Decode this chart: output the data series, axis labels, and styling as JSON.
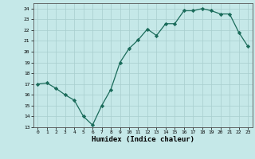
{
  "x": [
    0,
    1,
    2,
    3,
    4,
    5,
    6,
    7,
    8,
    9,
    10,
    11,
    12,
    13,
    14,
    15,
    16,
    17,
    18,
    19,
    20,
    21,
    22,
    23
  ],
  "y": [
    17.0,
    17.1,
    16.6,
    16.0,
    15.5,
    14.0,
    13.2,
    15.0,
    16.5,
    19.0,
    20.3,
    21.1,
    22.1,
    21.5,
    22.6,
    22.6,
    23.8,
    23.8,
    24.0,
    23.8,
    23.5,
    23.5,
    21.8,
    20.5
  ],
  "xlim": [
    -0.5,
    23.5
  ],
  "ylim": [
    13,
    24.5
  ],
  "yticks": [
    13,
    14,
    15,
    16,
    17,
    18,
    19,
    20,
    21,
    22,
    23,
    24
  ],
  "xticks": [
    0,
    1,
    2,
    3,
    4,
    5,
    6,
    7,
    8,
    9,
    10,
    11,
    12,
    13,
    14,
    15,
    16,
    17,
    18,
    19,
    20,
    21,
    22,
    23
  ],
  "xlabel": "Humidex (Indice chaleur)",
  "line_color": "#1a6b5a",
  "marker": "D",
  "marker_size": 2.2,
  "bg_color": "#c5e8e8",
  "grid_color": "#a8cece",
  "spine_color": "#555555"
}
